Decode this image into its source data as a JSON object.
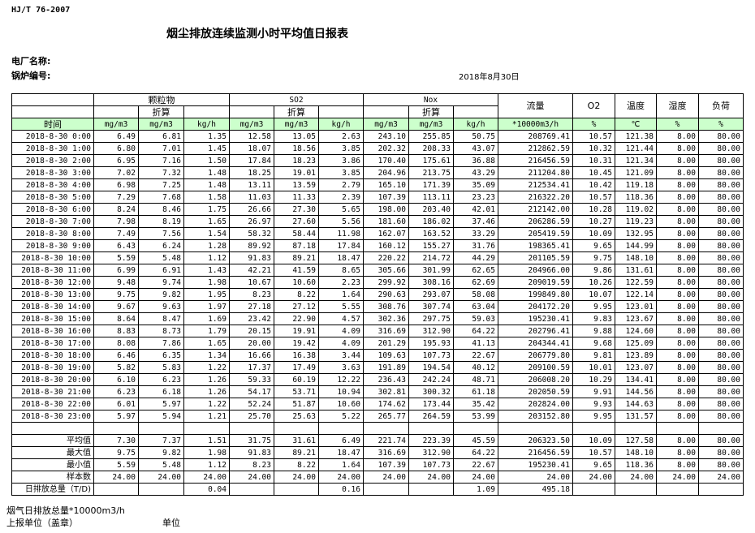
{
  "standard": "HJ/T  76-2007",
  "title": "烟尘排放连续监测小时平均值日报表",
  "plant_label": "电厂名称:",
  "boiler_label": "锅炉编号:",
  "date": "2018年8月30日",
  "colors": {
    "header_green": "#ccffcc"
  },
  "header": {
    "particulate": "颗粒物",
    "so2": "SO2",
    "nox": "Nox",
    "converted": "折算",
    "flow": "流量",
    "o2": "O2",
    "temp": "温度",
    "humidity": "湿度",
    "load": "负荷",
    "time": "时间",
    "units": [
      "mg/m3",
      "mg/m3",
      "kg/h",
      "mg/m3",
      "mg/m3",
      "kg/h",
      "mg/m3",
      "mg/m3",
      "kg/h",
      "*10000m3/h",
      "%",
      "℃",
      "%",
      "%"
    ]
  },
  "rows": [
    [
      "2018-8-30 0:00",
      "6.49",
      "6.81",
      "1.35",
      "12.58",
      "13.05",
      "2.63",
      "243.10",
      "255.85",
      "50.75",
      "208769.41",
      "10.57",
      "121.38",
      "8.00",
      "80.00"
    ],
    [
      "2018-8-30 1:00",
      "6.80",
      "7.01",
      "1.45",
      "18.07",
      "18.56",
      "3.85",
      "202.32",
      "208.33",
      "43.07",
      "212862.59",
      "10.32",
      "121.44",
      "8.00",
      "80.00"
    ],
    [
      "2018-8-30 2:00",
      "6.95",
      "7.16",
      "1.50",
      "17.84",
      "18.23",
      "3.86",
      "170.40",
      "175.61",
      "36.88",
      "216456.59",
      "10.31",
      "121.34",
      "8.00",
      "80.00"
    ],
    [
      "2018-8-30 3:00",
      "7.02",
      "7.32",
      "1.48",
      "18.25",
      "19.01",
      "3.85",
      "204.96",
      "213.75",
      "43.29",
      "211204.80",
      "10.45",
      "121.09",
      "8.00",
      "80.00"
    ],
    [
      "2018-8-30 4:00",
      "6.98",
      "7.25",
      "1.48",
      "13.11",
      "13.59",
      "2.79",
      "165.10",
      "171.39",
      "35.09",
      "212534.41",
      "10.42",
      "119.18",
      "8.00",
      "80.00"
    ],
    [
      "2018-8-30 5:00",
      "7.29",
      "7.68",
      "1.58",
      "11.03",
      "11.33",
      "2.39",
      "107.39",
      "113.11",
      "23.23",
      "216322.20",
      "10.57",
      "118.36",
      "8.00",
      "80.00"
    ],
    [
      "2018-8-30 6:00",
      "8.24",
      "8.46",
      "1.75",
      "26.66",
      "27.30",
      "5.65",
      "198.00",
      "203.40",
      "42.01",
      "212142.00",
      "10.28",
      "119.02",
      "8.00",
      "80.00"
    ],
    [
      "2018-8-30 7:00",
      "7.98",
      "8.19",
      "1.65",
      "26.97",
      "27.60",
      "5.56",
      "181.60",
      "186.02",
      "37.46",
      "206286.59",
      "10.27",
      "119.23",
      "8.00",
      "80.00"
    ],
    [
      "2018-8-30 8:00",
      "7.49",
      "7.56",
      "1.54",
      "58.32",
      "58.44",
      "11.98",
      "162.07",
      "163.52",
      "33.29",
      "205419.59",
      "10.09",
      "132.95",
      "8.00",
      "80.00"
    ],
    [
      "2018-8-30 9:00",
      "6.43",
      "6.24",
      "1.28",
      "89.92",
      "87.18",
      "17.84",
      "160.12",
      "155.27",
      "31.76",
      "198365.41",
      "9.65",
      "144.99",
      "8.00",
      "80.00"
    ],
    [
      "2018-8-30 10:00",
      "5.59",
      "5.48",
      "1.12",
      "91.83",
      "89.21",
      "18.47",
      "220.22",
      "214.72",
      "44.29",
      "201105.59",
      "9.75",
      "148.10",
      "8.00",
      "80.00"
    ],
    [
      "2018-8-30 11:00",
      "6.99",
      "6.91",
      "1.43",
      "42.21",
      "41.59",
      "8.65",
      "305.66",
      "301.99",
      "62.65",
      "204966.00",
      "9.86",
      "131.61",
      "8.00",
      "80.00"
    ],
    [
      "2018-8-30 12:00",
      "9.48",
      "9.74",
      "1.98",
      "10.67",
      "10.60",
      "2.23",
      "299.92",
      "308.16",
      "62.69",
      "209019.59",
      "10.26",
      "122.59",
      "8.00",
      "80.00"
    ],
    [
      "2018-8-30 13:00",
      "9.75",
      "9.82",
      "1.95",
      "8.23",
      "8.22",
      "1.64",
      "290.63",
      "293.07",
      "58.08",
      "199849.80",
      "10.07",
      "122.14",
      "8.00",
      "80.00"
    ],
    [
      "2018-8-30 14:00",
      "9.67",
      "9.63",
      "1.97",
      "27.18",
      "27.12",
      "5.55",
      "308.76",
      "307.74",
      "63.04",
      "204172.20",
      "9.95",
      "123.01",
      "8.00",
      "80.00"
    ],
    [
      "2018-8-30 15:00",
      "8.64",
      "8.47",
      "1.69",
      "23.42",
      "22.90",
      "4.57",
      "302.36",
      "297.75",
      "59.03",
      "195230.41",
      "9.83",
      "123.67",
      "8.00",
      "80.00"
    ],
    [
      "2018-8-30 16:00",
      "8.83",
      "8.73",
      "1.79",
      "20.15",
      "19.91",
      "4.09",
      "316.69",
      "312.90",
      "64.22",
      "202796.41",
      "9.88",
      "124.60",
      "8.00",
      "80.00"
    ],
    [
      "2018-8-30 17:00",
      "8.08",
      "7.86",
      "1.65",
      "20.00",
      "19.42",
      "4.09",
      "201.29",
      "195.93",
      "41.13",
      "204344.41",
      "9.68",
      "125.09",
      "8.00",
      "80.00"
    ],
    [
      "2018-8-30 18:00",
      "6.46",
      "6.35",
      "1.34",
      "16.66",
      "16.38",
      "3.44",
      "109.63",
      "107.73",
      "22.67",
      "206779.80",
      "9.81",
      "123.89",
      "8.00",
      "80.00"
    ],
    [
      "2018-8-30 19:00",
      "5.82",
      "5.83",
      "1.22",
      "17.37",
      "17.49",
      "3.63",
      "191.89",
      "194.54",
      "40.12",
      "209100.59",
      "10.01",
      "123.07",
      "8.00",
      "80.00"
    ],
    [
      "2018-8-30 20:00",
      "6.10",
      "6.23",
      "1.26",
      "59.33",
      "60.19",
      "12.22",
      "236.43",
      "242.24",
      "48.71",
      "206008.20",
      "10.29",
      "134.41",
      "8.00",
      "80.00"
    ],
    [
      "2018-8-30 21:00",
      "6.23",
      "6.18",
      "1.26",
      "54.17",
      "53.71",
      "10.94",
      "302.81",
      "300.32",
      "61.18",
      "202050.59",
      "9.91",
      "144.56",
      "8.00",
      "80.00"
    ],
    [
      "2018-8-30 22:00",
      "6.01",
      "5.97",
      "1.22",
      "52.24",
      "51.87",
      "10.60",
      "174.62",
      "173.44",
      "35.42",
      "202824.00",
      "9.93",
      "144.63",
      "8.00",
      "80.00"
    ],
    [
      "2018-8-30 23:00",
      "5.97",
      "5.94",
      "1.21",
      "25.70",
      "25.63",
      "5.22",
      "265.77",
      "264.59",
      "53.99",
      "203152.80",
      "9.95",
      "131.57",
      "8.00",
      "80.00"
    ]
  ],
  "summary": [
    [
      "平均值",
      "7.30",
      "7.37",
      "1.51",
      "31.75",
      "31.61",
      "6.49",
      "221.74",
      "223.39",
      "45.59",
      "206323.50",
      "10.09",
      "127.58",
      "8.00",
      "80.00"
    ],
    [
      "最大值",
      "9.75",
      "9.82",
      "1.98",
      "91.83",
      "89.21",
      "18.47",
      "316.69",
      "312.90",
      "64.22",
      "216456.59",
      "10.57",
      "148.10",
      "8.00",
      "80.00"
    ],
    [
      "最小值",
      "5.59",
      "5.48",
      "1.12",
      "8.23",
      "8.22",
      "1.64",
      "107.39",
      "107.73",
      "22.67",
      "195230.41",
      "9.65",
      "118.36",
      "8.00",
      "80.00"
    ],
    [
      "样本数",
      "24.00",
      "24.00",
      "24.00",
      "24.00",
      "24.00",
      "24.00",
      "24.00",
      "24.00",
      "24.00",
      "24.00",
      "24.00",
      "24.00",
      "24.00",
      "24.00"
    ],
    [
      "日排放总量（T/D)",
      "",
      "",
      "0.04",
      "",
      "",
      "0.16",
      "",
      "",
      "1.09",
      "495.18",
      "",
      "",
      "",
      ""
    ]
  ],
  "footer": {
    "flue_gas_total": "烟气日排放总量*10000m3/h",
    "reporting_unit": "上报单位（盖章）",
    "unit": "单位"
  }
}
